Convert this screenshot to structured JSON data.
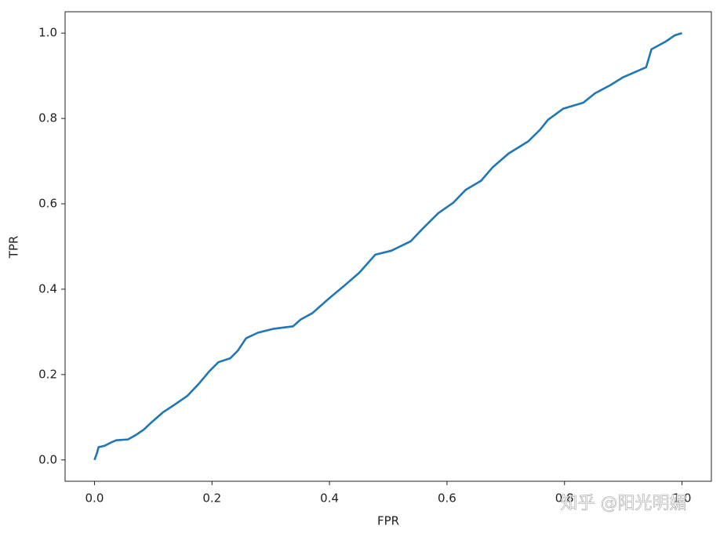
{
  "chart_data": {
    "type": "line",
    "xlabel": "FPR",
    "ylabel": "TPR",
    "watermark": "知乎 @阳光明媚",
    "xlim": [
      -0.05,
      1.05
    ],
    "ylim": [
      -0.05,
      1.05
    ],
    "xticks": [
      {
        "value": 0,
        "label": "0.0"
      },
      0.2,
      0.4,
      0.6,
      0.8,
      {
        "value": 1,
        "label": "1.0"
      }
    ],
    "yticks": [
      {
        "value": 0,
        "label": "0.0"
      },
      0.2,
      0.4,
      0.6,
      0.8,
      {
        "value": 1,
        "label": "1.0"
      }
    ],
    "grid": false,
    "series": [
      {
        "color": "#1f77b4",
        "x": [
          0,
          0.004,
          0.007,
          0.017,
          0.03,
          0.037,
          0.057,
          0.07,
          0.084,
          0.097,
          0.117,
          0.137,
          0.158,
          0.178,
          0.195,
          0.211,
          0.231,
          0.244,
          0.258,
          0.278,
          0.304,
          0.338,
          0.351,
          0.371,
          0.398,
          0.425,
          0.451,
          0.478,
          0.505,
          0.538,
          0.558,
          0.585,
          0.611,
          0.632,
          0.658,
          0.678,
          0.705,
          0.738,
          0.758,
          0.772,
          0.798,
          0.832,
          0.852,
          0.878,
          0.899,
          0.939,
          0.948,
          0.972,
          0.988,
          1
        ],
        "values": [
          0,
          0.015,
          0.03,
          0.033,
          0.042,
          0.046,
          0.048,
          0.058,
          0.071,
          0.088,
          0.112,
          0.13,
          0.15,
          0.179,
          0.207,
          0.229,
          0.238,
          0.256,
          0.285,
          0.298,
          0.307,
          0.313,
          0.329,
          0.344,
          0.377,
          0.408,
          0.439,
          0.481,
          0.49,
          0.512,
          0.541,
          0.578,
          0.603,
          0.633,
          0.654,
          0.686,
          0.718,
          0.746,
          0.773,
          0.797,
          0.823,
          0.837,
          0.859,
          0.878,
          0.896,
          0.92,
          0.962,
          0.98,
          0.995,
          1
        ]
      }
    ]
  }
}
